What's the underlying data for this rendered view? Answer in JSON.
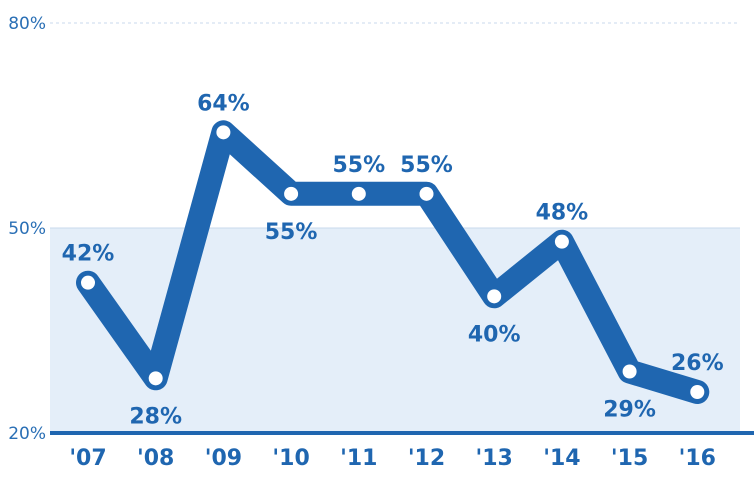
{
  "chart_data": {
    "type": "line",
    "title": "",
    "xlabel": "",
    "ylabel": "",
    "categories": [
      "'07",
      "'08",
      "'09",
      "'10",
      "'11",
      "'12",
      "'13",
      "'14",
      "'15",
      "'16"
    ],
    "series": [
      {
        "values": [
          42,
          28,
          64,
          55,
          55,
          55,
          40,
          48,
          29,
          26
        ],
        "labels": [
          "42%",
          "28%",
          "64%",
          "55%",
          "55%",
          "55%",
          "40%",
          "48%",
          "29%",
          "26%"
        ]
      }
    ],
    "y_ticks": [
      "20%",
      "50%",
      "80%"
    ],
    "y_tick_values": [
      20,
      50,
      80
    ],
    "ylim": [
      20,
      80
    ],
    "shaded_band": [
      20,
      50
    ],
    "grid": true,
    "colors": {
      "line": "#1f66b0",
      "marker_fill": "#ffffff",
      "band": "#e4eef9",
      "grid": "#c9d9ec",
      "axis": "#1f66b0"
    }
  }
}
